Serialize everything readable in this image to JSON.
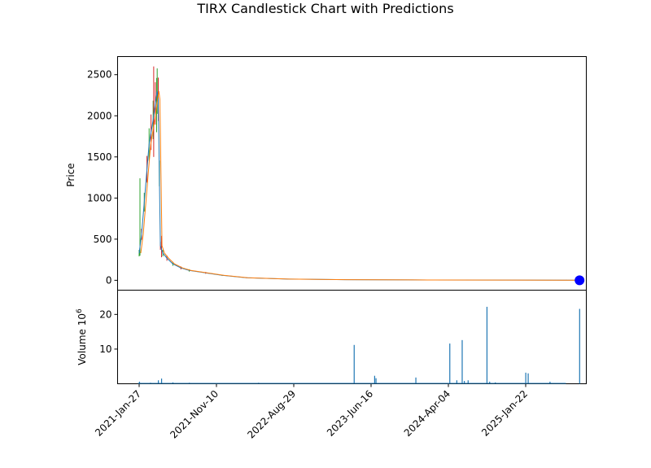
{
  "chart_data": [
    {
      "type": "candlestick",
      "title": "TIRX Candlestick Chart with Predictions",
      "ylabel": "Price",
      "ylim": [
        -120,
        2720
      ],
      "y_ticks": [
        0,
        500,
        1000,
        1500,
        2000,
        2500
      ],
      "x_ticks": [
        "2021-Jan-27",
        "2021-Nov-10",
        "2022-Aug-29",
        "2023-Jun-16",
        "2024-Apr-04",
        "2025-Jan-22"
      ],
      "grid": false,
      "colors": {
        "up": "#2ca02c",
        "down": "#d62728",
        "prediction_line": "#ff7f0e",
        "open_close": "#1f77b4",
        "prediction_marker": "#0000ff"
      },
      "price_path": [
        {
          "date": "2021-01-27",
          "value": 330
        },
        {
          "date": "2021-02-05",
          "value": 560
        },
        {
          "date": "2021-02-15",
          "value": 950
        },
        {
          "date": "2021-02-25",
          "value": 1350
        },
        {
          "date": "2021-03-05",
          "value": 1650
        },
        {
          "date": "2021-03-12",
          "value": 1800
        },
        {
          "date": "2021-03-20",
          "value": 1950
        },
        {
          "date": "2021-03-28",
          "value": 2150
        },
        {
          "date": "2021-04-04",
          "value": 2300
        },
        {
          "date": "2021-04-08",
          "value": 2200
        },
        {
          "date": "2021-04-12",
          "value": 1300
        },
        {
          "date": "2021-04-16",
          "value": 420
        },
        {
          "date": "2021-04-25",
          "value": 330
        },
        {
          "date": "2021-05-10",
          "value": 270
        },
        {
          "date": "2021-06-01",
          "value": 200
        },
        {
          "date": "2021-07-01",
          "value": 150
        },
        {
          "date": "2021-08-01",
          "value": 120
        },
        {
          "date": "2021-10-01",
          "value": 90
        },
        {
          "date": "2021-12-01",
          "value": 60
        },
        {
          "date": "2022-03-01",
          "value": 30
        },
        {
          "date": "2022-08-01",
          "value": 15
        },
        {
          "date": "2023-03-01",
          "value": 8
        },
        {
          "date": "2024-01-01",
          "value": 4
        },
        {
          "date": "2025-06-01",
          "value": 2
        },
        {
          "date": "2025-07-20",
          "value": 1
        }
      ],
      "spikes": [
        {
          "date": "2021-01-30",
          "high": 1240,
          "low": 300
        },
        {
          "date": "2021-03-22",
          "high": 2600,
          "low": 1500
        },
        {
          "date": "2021-04-02",
          "high": 2460,
          "low": 1800
        },
        {
          "date": "2021-04-20",
          "high": 540,
          "low": 280
        }
      ],
      "prediction": {
        "date": "2025-07-20",
        "value": 0
      }
    },
    {
      "type": "bar",
      "ylabel": "Volume  10",
      "ylabel_exponent": "6",
      "ylim": [
        0,
        27
      ],
      "y_ticks": [
        10,
        20
      ],
      "color": "#1f77b4",
      "bars": [
        {
          "date": "2021-01-28",
          "value": 0.6
        },
        {
          "date": "2021-03-10",
          "value": 0.3
        },
        {
          "date": "2021-04-08",
          "value": 1.0
        },
        {
          "date": "2021-04-20",
          "value": 1.5
        },
        {
          "date": "2021-06-01",
          "value": 0.4
        },
        {
          "date": "2021-08-01",
          "value": 0.3
        },
        {
          "date": "2022-04-15",
          "value": 0.3
        },
        {
          "date": "2023-04-05",
          "value": 11.2
        },
        {
          "date": "2023-06-20",
          "value": 2.3
        },
        {
          "date": "2023-06-25",
          "value": 1.6
        },
        {
          "date": "2023-11-20",
          "value": 1.8
        },
        {
          "date": "2024-03-25",
          "value": 11.6
        },
        {
          "date": "2024-04-20",
          "value": 1.0
        },
        {
          "date": "2024-05-10",
          "value": 12.6
        },
        {
          "date": "2024-05-18",
          "value": 0.8
        },
        {
          "date": "2024-06-01",
          "value": 1.0
        },
        {
          "date": "2024-08-10",
          "value": 22.2
        },
        {
          "date": "2024-08-20",
          "value": 0.6
        },
        {
          "date": "2024-09-10",
          "value": 0.4
        },
        {
          "date": "2025-01-01",
          "value": 3.2
        },
        {
          "date": "2025-01-10",
          "value": 3.0
        },
        {
          "date": "2025-04-01",
          "value": 0.6
        },
        {
          "date": "2025-07-20",
          "value": 21.6
        }
      ]
    }
  ]
}
